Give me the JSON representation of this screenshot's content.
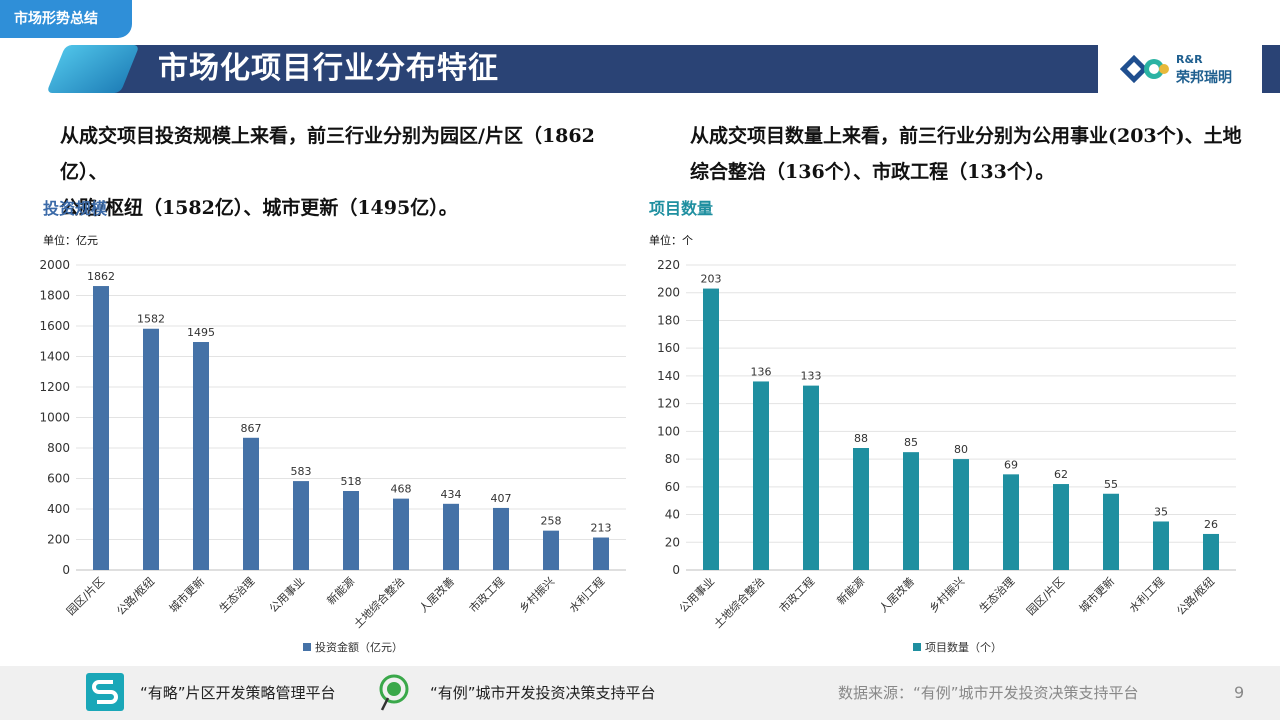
{
  "header": {
    "section_tag": "市场形势总结",
    "title": "市场化项目行业分布特征",
    "logo_line1": "R&R",
    "logo_line2": "荣邦瑞明"
  },
  "summary_left": [
    "从成交项目投资规模上来看，前三行业分别为园区/片区（1862亿）、",
    "公路/枢纽（1582亿）、城市更新（1495亿）。"
  ],
  "summary_right": [
    "从成交项目数量上来看，前三行业分别为公用事业(203个)、土地",
    "综合整治（136个）、市政工程（133个）。"
  ],
  "left_chart": {
    "section_title": "投资规模",
    "unit": "单位：亿元"
  },
  "right_chart": {
    "section_title": "项目数量",
    "unit": "单位：个"
  },
  "chart_data": [
    {
      "type": "bar",
      "categories": [
        "园区/片区",
        "公路/枢纽",
        "城市更新",
        "生态治理",
        "公用事业",
        "新能源",
        "土地综合整治",
        "人居改善",
        "市政工程",
        "乡村振兴",
        "水利工程"
      ],
      "values": [
        1862,
        1582,
        1495,
        867,
        583,
        518,
        468,
        434,
        407,
        258,
        213
      ],
      "series": [
        {
          "name": "投资金额（亿元）",
          "color": "#4572a7"
        }
      ],
      "ylim": [
        0,
        2000
      ],
      "yticks": [
        0,
        200,
        400,
        600,
        800,
        1000,
        1200,
        1400,
        1600,
        1800,
        2000
      ],
      "grid": true,
      "legend": "bottom"
    },
    {
      "type": "bar",
      "categories": [
        "公用事业",
        "土地综合整治",
        "市政工程",
        "新能源",
        "人居改善",
        "乡村振兴",
        "生态治理",
        "园区/片区",
        "城市更新",
        "水利工程",
        "公路/枢纽"
      ],
      "values": [
        203,
        136,
        133,
        88,
        85,
        80,
        69,
        62,
        55,
        35,
        26
      ],
      "series": [
        {
          "name": "项目数量（个）",
          "color": "#1f8fa0"
        }
      ],
      "ylim": [
        0,
        220
      ],
      "yticks": [
        0,
        20,
        40,
        60,
        80,
        100,
        120,
        140,
        160,
        180,
        200,
        220
      ],
      "grid": true,
      "legend": "bottom"
    }
  ],
  "footer": {
    "platform1": "“有略”片区开发策略管理平台",
    "platform2": "“有例”城市开发投资决策支持平台",
    "source": "数据来源：“有例”城市开发投资决策支持平台",
    "page": "9"
  },
  "colors": {
    "title_bar": "#2a4375",
    "left_bars": "#4572a7",
    "right_bars": "#1f8fa0",
    "left_section": "#3b6aa8",
    "right_section": "#1f8fa0"
  }
}
